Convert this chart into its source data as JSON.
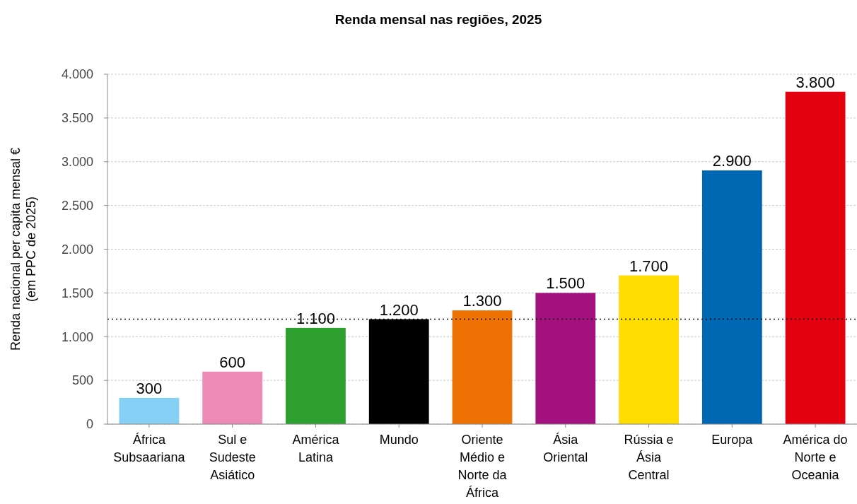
{
  "chart_data": {
    "type": "bar",
    "title": "Renda mensal nas regiões, 2025",
    "ylabel": "Renda nacional per capita mensal € (em PPC de 2025)",
    "categories": [
      "África Subsaariana",
      "Sul e Sudeste Asiático",
      "América Latina",
      "Mundo",
      "Oriente Médio e Norte da África",
      "Ásia Oriental",
      "Rússia e Ásia Central",
      "Europa",
      "América do Norte e Oceania"
    ],
    "values": [
      300,
      600,
      1100,
      1200,
      1300,
      1500,
      1700,
      2900,
      3800
    ],
    "colors": [
      "#87d0f5",
      "#ee8ab8",
      "#2ea02f",
      "#000000",
      "#ee7203",
      "#a3117e",
      "#ffdd00",
      "#0067b2",
      "#e3000f"
    ],
    "ylim": [
      0,
      4000
    ],
    "yticks": [
      {
        "value": 0,
        "label": "0"
      },
      {
        "value": 500,
        "label": "500"
      },
      {
        "value": 1000,
        "label": "1.000"
      },
      {
        "value": 1500,
        "label": "1.500"
      },
      {
        "value": 2000,
        "label": "2.000"
      },
      {
        "value": 2500,
        "label": "2.500"
      },
      {
        "value": 3000,
        "label": "3.000"
      },
      {
        "value": 3500,
        "label": "3.500"
      },
      {
        "value": 4000,
        "label": "4.000"
      }
    ],
    "grid": "y",
    "value_labels": [
      "300",
      "600",
      "1.100",
      "1.200",
      "1.300",
      "1.500",
      "1.700",
      "2.900",
      "3.800"
    ],
    "ref_lines": [
      {
        "axis": "y",
        "value": 1200,
        "line_style": "dotted",
        "color": "#000000"
      }
    ]
  }
}
